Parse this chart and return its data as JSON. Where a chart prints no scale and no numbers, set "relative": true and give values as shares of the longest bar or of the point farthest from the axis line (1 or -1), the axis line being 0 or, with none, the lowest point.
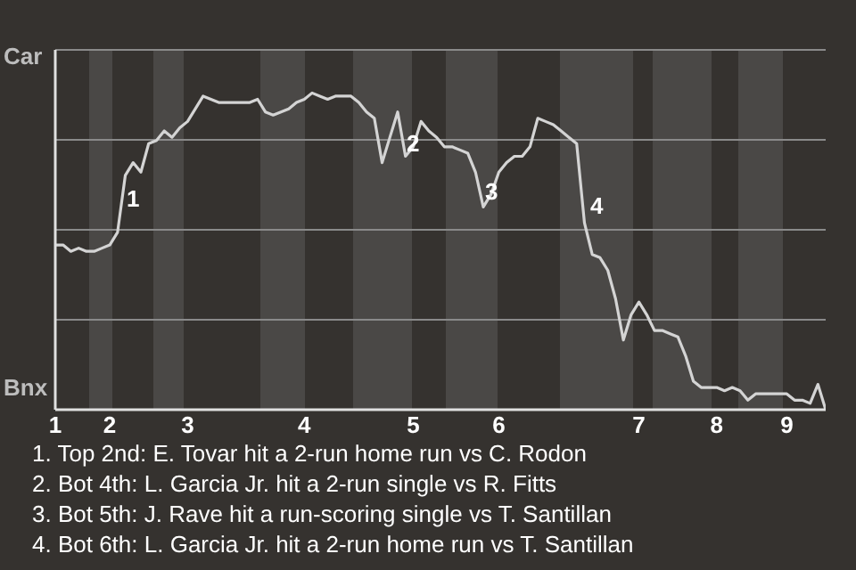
{
  "chart_data": {
    "type": "line",
    "relative": true,
    "categories": [
      "1",
      null,
      null,
      null,
      null,
      null,
      null,
      "2",
      null,
      null,
      null,
      null,
      null,
      null,
      null,
      null,
      null,
      "3",
      null,
      null,
      null,
      null,
      null,
      null,
      null,
      null,
      null,
      null,
      null,
      null,
      null,
      null,
      "4",
      null,
      null,
      null,
      null,
      null,
      null,
      null,
      null,
      null,
      null,
      null,
      null,
      null,
      "5",
      null,
      null,
      null,
      null,
      null,
      null,
      null,
      null,
      null,
      null,
      "6",
      null,
      null,
      null,
      null,
      null,
      null,
      null,
      null,
      null,
      null,
      null,
      null,
      null,
      null,
      null,
      null,
      null,
      "7",
      null,
      null,
      null,
      null,
      null,
      null,
      null,
      null,
      null,
      "8",
      null,
      null,
      null,
      null,
      null,
      null,
      null,
      null,
      "9",
      null,
      null,
      null,
      null,
      null
    ],
    "grid": "y",
    "series": [
      {
        "color": "#d4d4d4",
        "values": [
          0.52,
          0.52,
          0.5,
          0.51,
          0.5,
          0.5,
          0.51,
          0.52,
          0.56,
          0.74,
          0.78,
          0.75,
          0.84,
          0.85,
          0.88,
          0.86,
          0.89,
          0.91,
          0.95,
          0.99,
          0.98,
          0.97,
          0.97,
          0.97,
          0.97,
          0.97,
          0.98,
          0.94,
          0.93,
          0.94,
          0.95,
          0.97,
          0.98,
          1,
          0.99,
          0.98,
          0.99,
          0.99,
          0.99,
          0.97,
          0.94,
          0.92,
          0.78,
          0.86,
          0.94,
          0.8,
          0.83,
          0.91,
          0.88,
          0.86,
          0.83,
          0.83,
          0.82,
          0.81,
          0.75,
          0.64,
          0.68,
          0.75,
          0.78,
          0.8,
          0.8,
          0.83,
          0.92,
          0.91,
          0.9,
          0.88,
          0.86,
          0.84,
          0.59,
          0.49,
          0.48,
          0.44,
          0.35,
          0.22,
          0.3,
          0.34,
          0.3,
          0.25,
          0.25,
          0.24,
          0.23,
          0.17,
          0.09,
          0.07,
          0.07,
          0.07,
          0.06,
          0.07,
          0.06,
          0.03,
          0.05,
          0.05,
          0.05,
          0.05,
          0.05,
          0.03,
          0.03,
          0.02,
          0.08,
          0
        ]
      }
    ],
    "annotations": [
      "Car",
      "Bnx",
      "1",
      "2",
      "3",
      "4",
      "1. Top 2nd: E. Tovar hit a 2-run home run vs C. Rodon",
      "2. Bot 4th: L. Garcia Jr. hit a 2-run single vs R. Fitts",
      "3. Bot 5th: J. Rave hit a run-scoring single vs T. Santillan",
      "4. Bot 6th: L. Garcia Jr. hit a 2-run home run vs T. Santillan"
    ]
  }
}
